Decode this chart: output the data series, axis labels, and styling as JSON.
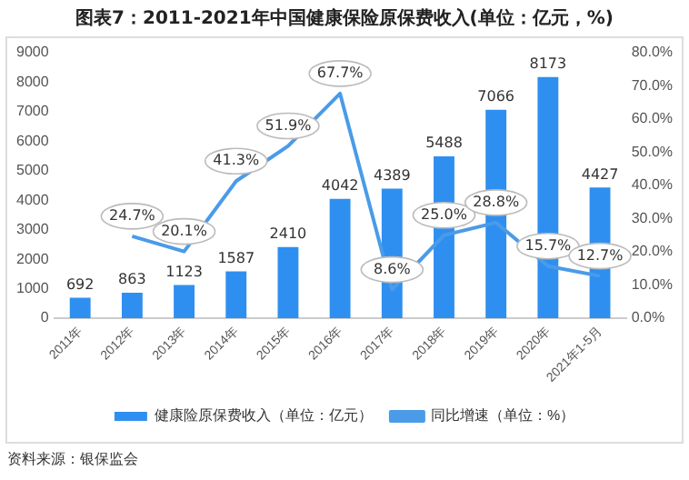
{
  "chart_data": {
    "type": "bar",
    "title": "图表7：2011-2021年中国健康保险原保费收入(单位：亿元，%)",
    "categories": [
      "2011年",
      "2012年",
      "2013年",
      "2014年",
      "2015年",
      "2016年",
      "2017年",
      "2018年",
      "2019年",
      "2020年",
      "2021年1-5月"
    ],
    "series": [
      {
        "name": "健康险原保费收入（单位：亿元）",
        "color": "#2e8ff0",
        "values": [
          692,
          863,
          1123,
          1587,
          2410,
          4042,
          4389,
          5488,
          7066,
          8173,
          4427
        ]
      },
      {
        "name": "同比增速（单位：%）",
        "type": "line",
        "axis": "y2",
        "color": "#4a9be8",
        "values": [
          null,
          24.7,
          20.1,
          41.3,
          51.9,
          67.7,
          8.6,
          25.0,
          28.8,
          15.7,
          12.7
        ],
        "value_labels": [
          null,
          "24.7%",
          "20.1%",
          "41.3%",
          "51.9%",
          "67.7%",
          "8.6%",
          "25.0%",
          "28.8%",
          "15.7%",
          "12.7%"
        ]
      }
    ],
    "ylim": [
      0,
      9000
    ],
    "yticks": [
      0,
      1000,
      2000,
      3000,
      4000,
      5000,
      6000,
      7000,
      8000,
      9000
    ],
    "y2lim": [
      0,
      80
    ],
    "y2ticks": [
      {
        "value": 0,
        "label": "0.0%"
      },
      {
        "value": 10,
        "label": "10.0%"
      },
      {
        "value": 20,
        "label": "20.0%"
      },
      {
        "value": 30,
        "label": "30.0%"
      },
      {
        "value": 40,
        "label": "40.0%"
      },
      {
        "value": 50,
        "label": "50.0%"
      },
      {
        "value": 60,
        "label": "60.0%"
      },
      {
        "value": 70,
        "label": "70.0%"
      },
      {
        "value": 80,
        "label": "80.0%"
      }
    ],
    "data_labels": true,
    "grid": false,
    "legend": "bottom",
    "marker": "none",
    "annotations": [
      "资料来源：银保监会"
    ]
  }
}
